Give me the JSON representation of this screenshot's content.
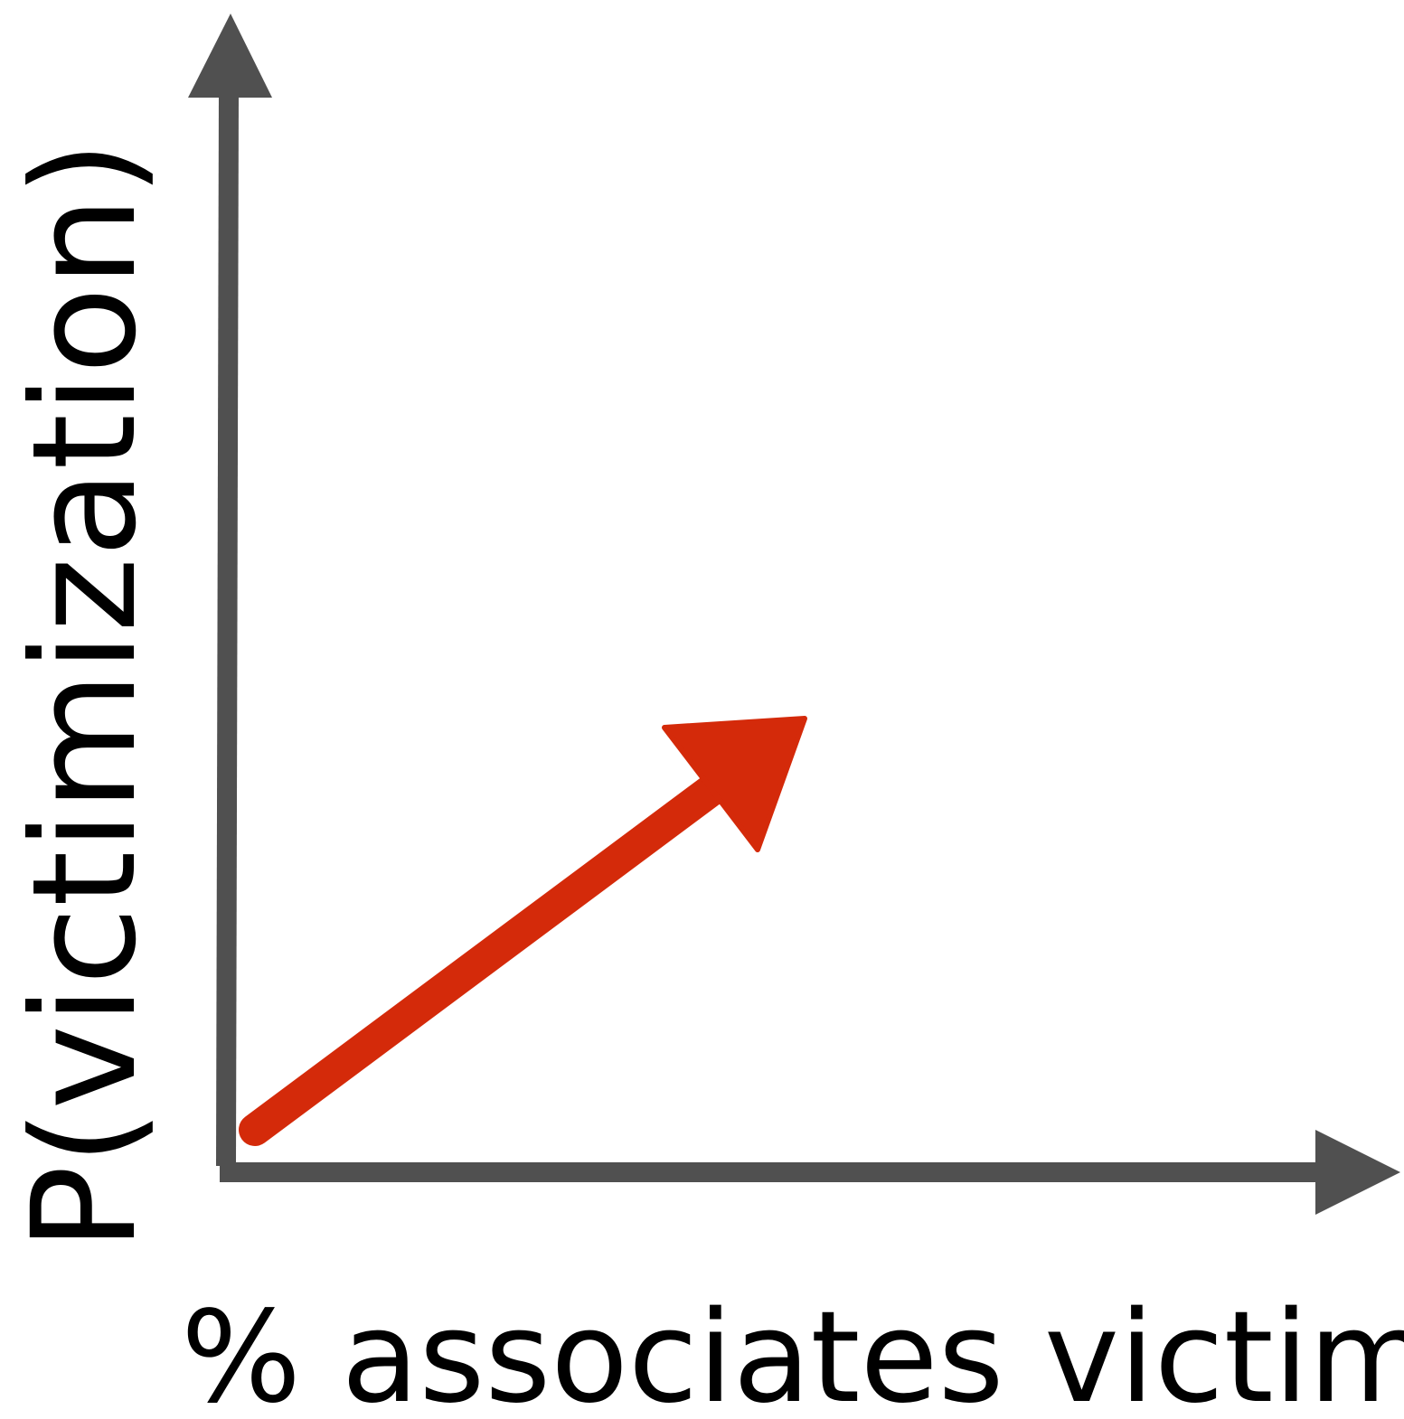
{
  "axes": {
    "y_label": "P(victimization)",
    "x_label": "% associates victim"
  }
}
